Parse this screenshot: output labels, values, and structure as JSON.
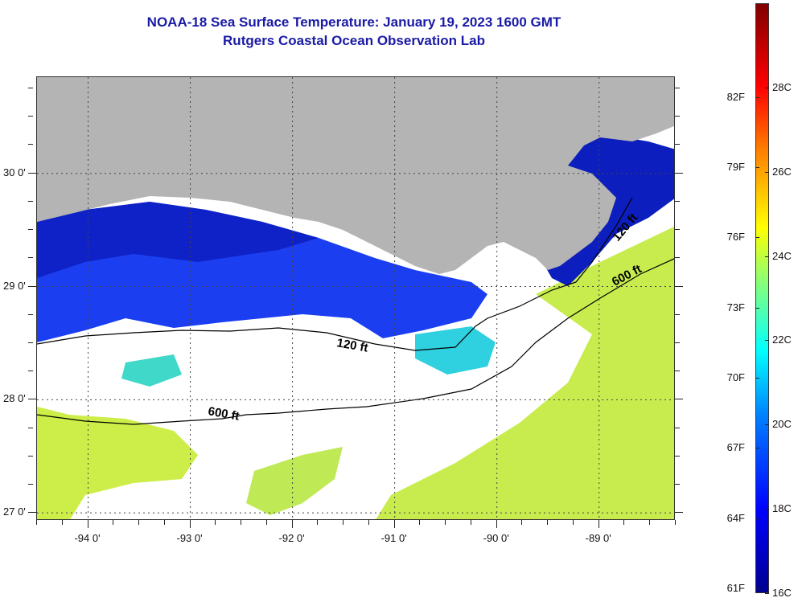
{
  "title": {
    "line1": "NOAA-18 Sea Surface Temperature:  January 19, 2023 1600 GMT",
    "line2": "Rutgers Coastal Ocean Observation Lab"
  },
  "map": {
    "lon_range": [
      -94.5,
      -88.25
    ],
    "lat_range": [
      26.93,
      30.85
    ],
    "lat_ticks": [
      {
        "value": 30,
        "label": "30 0'"
      },
      {
        "value": 29,
        "label": "29 0'"
      },
      {
        "value": 28,
        "label": "28 0'"
      },
      {
        "value": 27,
        "label": "27 0'"
      }
    ],
    "lon_ticks": [
      {
        "value": -94,
        "label": "-94 0'"
      },
      {
        "value": -93,
        "label": "-93 0'"
      },
      {
        "value": -92,
        "label": "-92 0'"
      },
      {
        "value": -91,
        "label": "-91 0'"
      },
      {
        "value": -90,
        "label": "-90 0'"
      },
      {
        "value": -89,
        "label": "-89 0'"
      }
    ],
    "contour_labels": {
      "c120a": "120 ft",
      "c120b": "120 ft",
      "c600a": "600 ft",
      "c600b": "600 ft"
    },
    "colors": {
      "land": "#b4b4b4",
      "cloud": "#ffffff",
      "sea_cold": "#0a1fd0",
      "sea_cool": "#1a55ff",
      "sea_mid": "#2bd1e6",
      "sea_warm": "#c8f04a"
    }
  },
  "colorbar": {
    "range_c": [
      16,
      30
    ],
    "f_labels": [
      "82F",
      "79F",
      "76F",
      "73F",
      "70F",
      "67F",
      "64F",
      "61F"
    ],
    "c_labels": [
      "28C",
      "26C",
      "24C",
      "22C",
      "20C",
      "18C",
      "16C"
    ]
  }
}
